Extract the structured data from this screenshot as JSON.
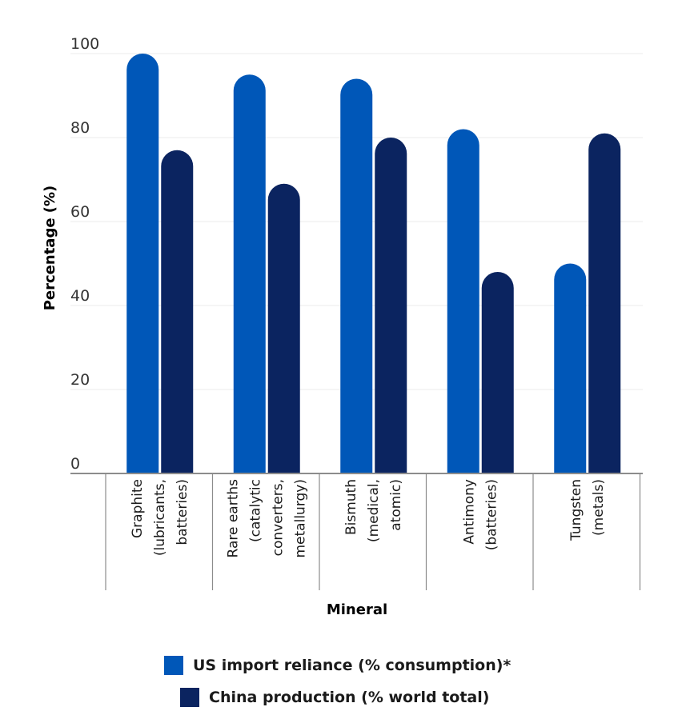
{
  "chart_data": {
    "type": "bar",
    "title": "",
    "xlabel": "Mineral",
    "ylabel": "Percentage (%)",
    "ylim": [
      0,
      100
    ],
    "yticks": [
      0,
      20,
      40,
      60,
      80,
      100
    ],
    "grid": true,
    "categories": [
      [
        "Graphite",
        "(lubricants,",
        "batteries)"
      ],
      [
        "Rare earths",
        "(catalytic",
        "converters,",
        "metallurgy)"
      ],
      [
        "Bismuth",
        "(medical,",
        "atomic)"
      ],
      [
        "Antimony",
        "(batteries)"
      ],
      [
        "Tungsten",
        "(metals)"
      ]
    ],
    "series": [
      {
        "name": "US import reliance (% consumption)*",
        "color": "#0057b8",
        "values": [
          100,
          95,
          94,
          82,
          50
        ]
      },
      {
        "name": "China production (% world total)",
        "color": "#0b2460",
        "values": [
          77,
          69,
          80,
          48,
          81
        ]
      }
    ],
    "legend_position": "bottom"
  }
}
